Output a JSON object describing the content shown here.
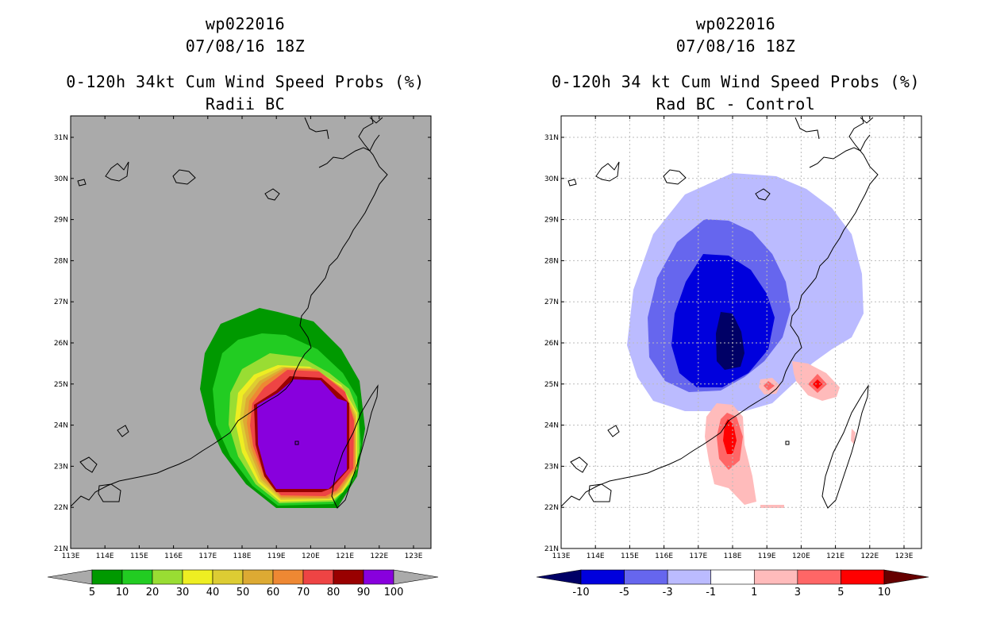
{
  "left_panel": {
    "storm_id": "wp022016",
    "datetime": "07/08/16 18Z",
    "title": "0-120h 34kt Cum Wind Speed Probs (%)",
    "subtitle": "Radii BC",
    "lon_labels": [
      "113E",
      "114E",
      "115E",
      "116E",
      "117E",
      "118E",
      "119E",
      "120E",
      "121E",
      "122E",
      "123E"
    ],
    "lat_labels": [
      "21N",
      "22N",
      "23N",
      "24N",
      "25N",
      "26N",
      "27N",
      "28N",
      "29N",
      "30N",
      "31N"
    ],
    "colorbar": {
      "labels": [
        "5",
        "10",
        "20",
        "30",
        "40",
        "50",
        "60",
        "70",
        "80",
        "90",
        "100"
      ],
      "colors": [
        "#009900",
        "#22cc22",
        "#99dd33",
        "#eeee22",
        "#ddcc33",
        "#ddaa33",
        "#ee8833",
        "#ee4444",
        "#990000",
        "#8800dd"
      ],
      "under_color": "#aaaaaa",
      "over_color": "#aaaaaa"
    },
    "map_background": "#aaaaaa"
  },
  "right_panel": {
    "storm_id": "wp022016",
    "datetime": "07/08/16 18Z",
    "title": "0-120h 34 kt Cum Wind Speed Probs (%)",
    "subtitle": "Rad BC - Control",
    "lon_labels": [
      "113E",
      "114E",
      "115E",
      "116E",
      "117E",
      "118E",
      "119E",
      "120E",
      "121E",
      "122E",
      "123E"
    ],
    "lat_labels": [
      "21N",
      "22N",
      "23N",
      "24N",
      "25N",
      "26N",
      "27N",
      "28N",
      "29N",
      "30N",
      "31N"
    ],
    "colorbar": {
      "labels": [
        "-10",
        "-5",
        "-3",
        "-1",
        "1",
        "3",
        "5",
        "10"
      ],
      "colors": [
        "#0000dd",
        "#6666ee",
        "#bbbbff",
        "#ffffff",
        "#ffbbbb",
        "#ff6666",
        "#ff0000"
      ],
      "under_color": "#000066",
      "over_color": "#660000"
    },
    "map_background": "#ffffff"
  }
}
